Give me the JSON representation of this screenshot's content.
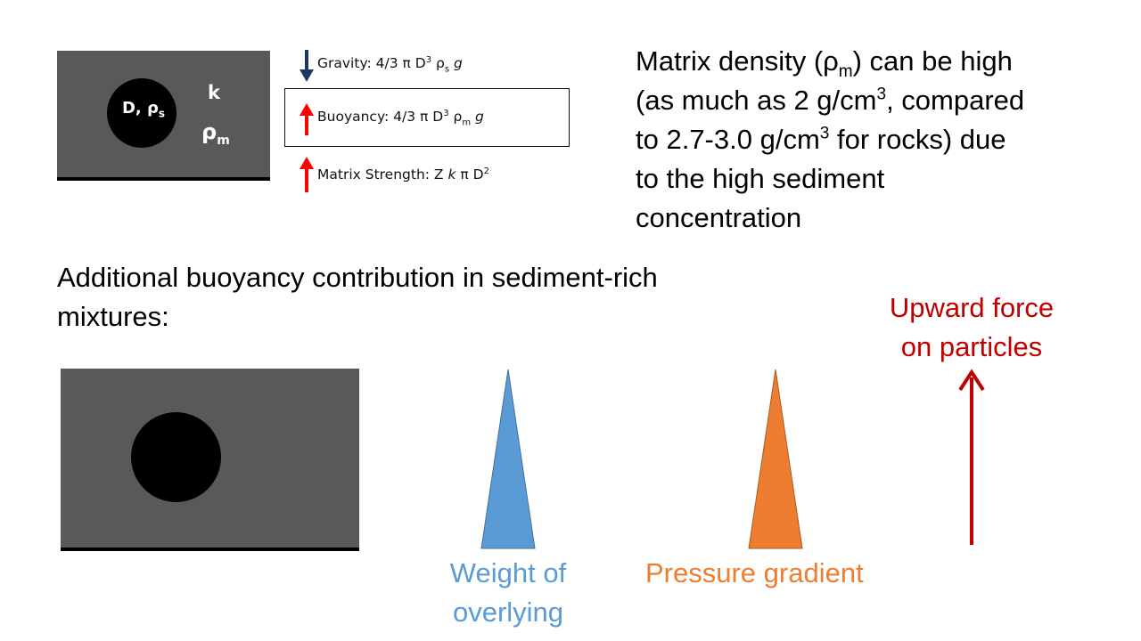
{
  "top_box": {
    "particle_label": "D, ρ",
    "particle_sub": "s",
    "k_label": "k",
    "rho_label": "ρ",
    "rho_sub": "m"
  },
  "forces": {
    "gravity": {
      "prefix": "Gravity: 4/3 π D",
      "sup": "3",
      "mid": " ρ",
      "sub": "s",
      "suffix": " g",
      "arrow_color": "#1f3864"
    },
    "buoyancy": {
      "prefix": "Buoyancy: 4/3 π D",
      "sup": "3",
      "mid": " ρ",
      "sub": "m",
      "suffix": " g",
      "arrow_color": "#ff0000"
    },
    "strength": {
      "prefix": "Matrix Strength: Z ",
      "k": "k",
      "mid": " π D",
      "sup": "2",
      "arrow_color": "#ff0000"
    }
  },
  "matrix_text": {
    "l1a": "Matrix density (ρ",
    "l1sub": "m",
    "l1b": ") can be high",
    "l2a": "(as much as 2 g/cm",
    "l2sup": "3",
    "l2b": ", compared",
    "l3a": "to 2.7-3.0 g/cm",
    "l3sup": "3",
    "l3b": " for rocks) due",
    "l4": "to the high sediment",
    "l5": "concentration"
  },
  "additional": {
    "line1": "Additional buoyancy contribution in sediment-rich",
    "line2": "mixtures:"
  },
  "labels": {
    "weight_l1": "Weight of",
    "weight_l2": "overlying",
    "pressure": "Pressure gradient",
    "upward_l1": "Upward force",
    "upward_l2": "on particles"
  },
  "colors": {
    "matrix_gray": "#595959",
    "weight_blue": "#5b9bd5",
    "pressure_orange": "#ed7d31",
    "upward_red": "#c00000"
  }
}
